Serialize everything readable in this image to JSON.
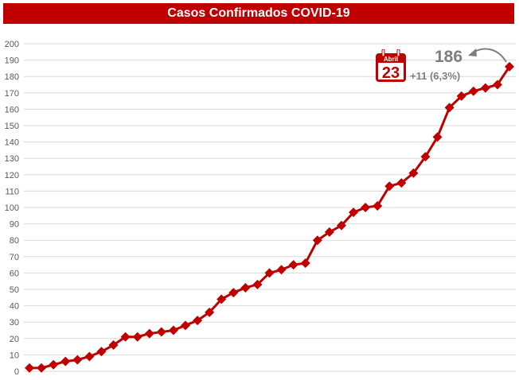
{
  "chart_data": {
    "type": "line",
    "title": "Casos Confirmados COVID-19",
    "xlabel": "",
    "ylabel": "",
    "ylim": [
      0,
      200
    ],
    "yticks": [
      0,
      10,
      20,
      30,
      40,
      50,
      60,
      70,
      80,
      90,
      100,
      110,
      120,
      130,
      140,
      150,
      160,
      170,
      180,
      190,
      200
    ],
    "grid": true,
    "series": [
      {
        "values": [
          2,
          2,
          4,
          6,
          7,
          9,
          12,
          16,
          21,
          21,
          23,
          24,
          25,
          28,
          31,
          36,
          44,
          48,
          51,
          53,
          60,
          62,
          65,
          66,
          80,
          85,
          89,
          97,
          100,
          101,
          113,
          115,
          121,
          131,
          143,
          161,
          168,
          171,
          173,
          175,
          186
        ]
      }
    ],
    "annotation": {
      "calendar_month": "Abril",
      "calendar_day": "23",
      "total": "186",
      "change": "+11 (6,3%)"
    },
    "colors": {
      "line": "#c00000",
      "title_bar": "#c00000",
      "annotation_text": "#7f7f7f"
    }
  }
}
